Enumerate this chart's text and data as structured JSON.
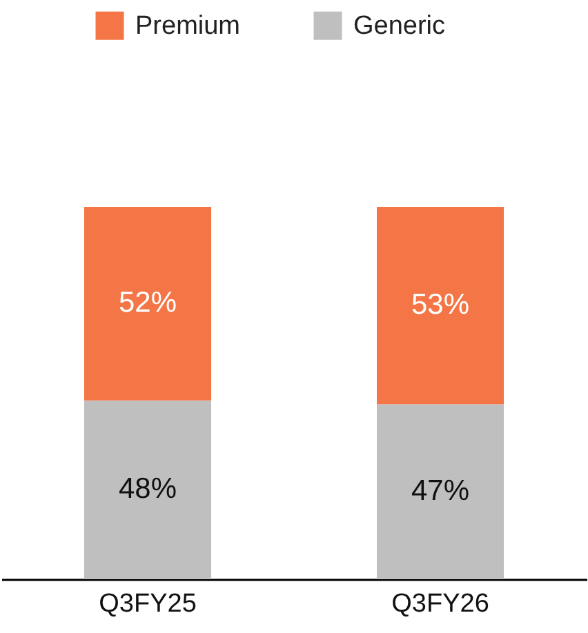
{
  "chart_data": {
    "type": "bar",
    "stacked": true,
    "categories": [
      "Q3FY25",
      "Q3FY26"
    ],
    "series": [
      {
        "name": "Generic",
        "color": "#bfbfbf",
        "values": [
          48,
          47
        ],
        "value_labels": [
          "48%",
          "47%"
        ]
      },
      {
        "name": "Premium",
        "color": "#f47646",
        "values": [
          52,
          53
        ],
        "value_labels": [
          "52%",
          "53%"
        ]
      }
    ],
    "legend": "top"
  }
}
